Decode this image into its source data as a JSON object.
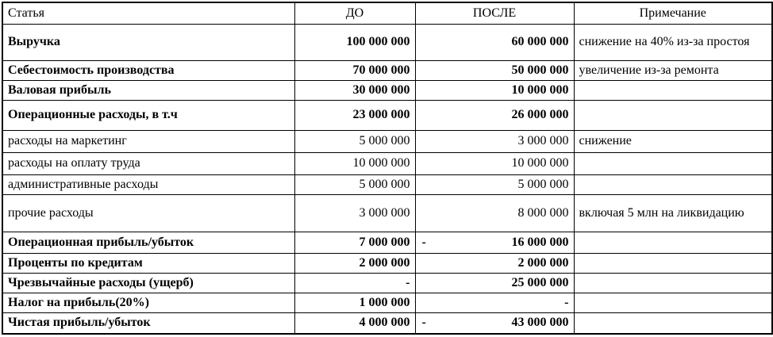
{
  "table": {
    "headers": [
      "Статья",
      "ДО",
      "ПОСЛЕ",
      "Примечание"
    ],
    "rows": [
      {
        "bold": true,
        "article": "Выручка",
        "before": "100 000 000",
        "before_minus": "",
        "after": "60 000 000",
        "after_minus": "",
        "note": "снижение на 40% из-за простоя"
      },
      {
        "bold": true,
        "article": "Себестоимость производства",
        "before": "70 000 000",
        "before_minus": "",
        "after": "50 000 000",
        "after_minus": "",
        "note": "увеличение из-за ремонта"
      },
      {
        "bold": true,
        "article": "Валовая прибыль",
        "before": "30 000 000",
        "before_minus": "",
        "after": "10 000 000",
        "after_minus": "",
        "note": ""
      },
      {
        "bold": true,
        "article": "Операционные расходы, в т.ч",
        "before": "23 000 000",
        "before_minus": "",
        "after": "26 000 000",
        "after_minus": "",
        "note": ""
      },
      {
        "bold": false,
        "article": "расходы на маркетинг",
        "before": "5 000 000",
        "before_minus": "",
        "after": "3 000 000",
        "after_minus": "",
        "note": "снижение"
      },
      {
        "bold": false,
        "article": "расходы на оплату труда",
        "before": "10 000 000",
        "before_minus": "",
        "after": "10 000 000",
        "after_minus": "",
        "note": ""
      },
      {
        "bold": false,
        "article": "административные расходы",
        "before": "5 000 000",
        "before_minus": "",
        "after": "5 000 000",
        "after_minus": "",
        "note": ""
      },
      {
        "bold": false,
        "article": "прочие расходы",
        "before": "3 000 000",
        "before_minus": "",
        "after": "8 000 000",
        "after_minus": "",
        "note": "включая 5 млн на ликвидацию"
      },
      {
        "bold": true,
        "article": "Операционная прибыль/убыток",
        "before": "7 000 000",
        "before_minus": "",
        "after": "16 000 000",
        "after_minus": "-",
        "note": ""
      },
      {
        "bold": true,
        "article": "Проценты по кредитам",
        "before": "2 000 000",
        "before_minus": "",
        "after": "2 000 000",
        "after_minus": "",
        "note": ""
      },
      {
        "bold": true,
        "article": "Чрезвычайные расходы (ущерб)",
        "before": "-",
        "before_minus": "",
        "after": "25 000 000",
        "after_minus": "",
        "note": ""
      },
      {
        "bold": true,
        "article": "Налог на прибыль(20%)",
        "before": "1 000 000",
        "before_minus": "",
        "after": "-",
        "after_minus": "",
        "note": ""
      },
      {
        "bold": true,
        "article": "Чистая прибыль/убыток",
        "before": "4 000 000",
        "before_minus": "",
        "after": "43 000 000",
        "after_minus": "-",
        "note": ""
      }
    ]
  }
}
